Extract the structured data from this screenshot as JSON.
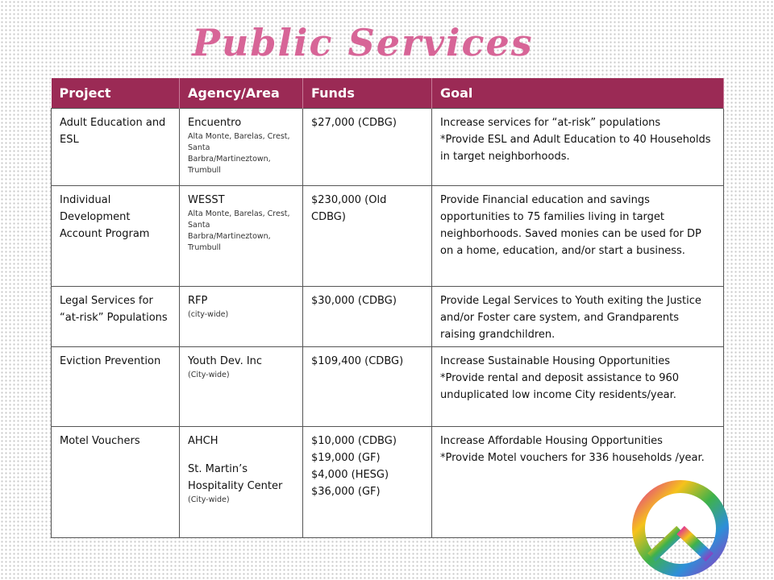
{
  "title": "Public Services",
  "table": {
    "columns": [
      "Project",
      "Agency/Area",
      "Funds",
      "Goal"
    ],
    "rows": [
      {
        "project": "Adult Education and ESL",
        "agency": [
          "Encuentro"
        ],
        "agency_note": "Alta Monte, Barelas, Crest, Santa Barbra/Martineztown, Trumbull",
        "funds": [
          "$27,000 (CDBG)"
        ],
        "goal": [
          "Increase services for “at-risk” populations",
          "*Provide ESL and Adult Education to 40 Households in target neighborhoods."
        ]
      },
      {
        "project": "Individual Development Account Program",
        "agency": [
          "WESST"
        ],
        "agency_note": "Alta Monte, Barelas, Crest, Santa Barbra/Martineztown, Trumbull",
        "funds": [
          "$230,000 (Old CDBG)"
        ],
        "goal": [
          "Provide Financial education and savings opportunities to 75 families living in target neighborhoods.  Saved monies can be used for DP on a home, education, and/or start a business."
        ]
      },
      {
        "project": "Legal Services for “at-risk” Populations",
        "agency": [
          "RFP"
        ],
        "agency_note": "(city-wide)",
        "funds": [
          "$30,000 (CDBG)"
        ],
        "goal": [
          "Provide Legal Services to Youth exiting the Justice and/or Foster care system, and Grandparents raising grandchildren."
        ]
      },
      {
        "project": "Eviction Prevention",
        "agency": [
          "Youth Dev. Inc"
        ],
        "agency_note": "(City-wide)",
        "funds": [
          "$109,400 (CDBG)"
        ],
        "goal": [
          "Increase Sustainable Housing Opportunities",
          "*Provide rental and deposit assistance to 960 unduplicated low income City residents/year."
        ]
      },
      {
        "project": "Motel Vouchers",
        "agency": [
          "AHCH",
          "St. Martin’s Hospitality Center"
        ],
        "agency_note": "(City-wide)",
        "funds": [
          "$10,000 (CDBG)",
          "$19,000 (GF)",
          "$4,000 (HESG)",
          "$36,000 (GF)"
        ],
        "goal": [
          "Increase Affordable Housing Opportunities",
          "*Provide Motel vouchers for 336 households /year."
        ]
      }
    ]
  }
}
